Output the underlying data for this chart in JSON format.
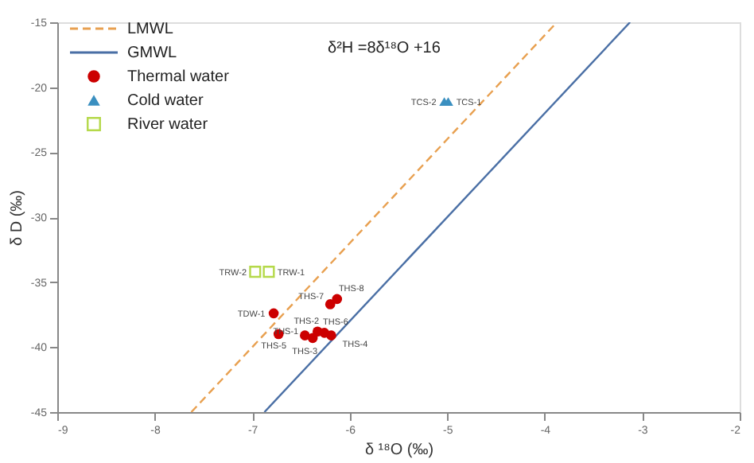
{
  "chart_data": {
    "type": "scatter",
    "xlabel": "δ ¹⁸O (‰)",
    "ylabel": "δ D (‰)",
    "xlim": [
      -9,
      -2
    ],
    "ylim": [
      -45,
      -15
    ],
    "xticks": [
      -9,
      -8,
      -7,
      -6,
      -5,
      -4,
      -3,
      -2
    ],
    "yticks": [
      -45,
      -40,
      -35,
      -30,
      -25,
      -20,
      -15
    ],
    "grid": false,
    "legend": "top left",
    "series": [
      {
        "name": "LMWL",
        "type": "line",
        "color": "#e8a050",
        "line_style": "dashed",
        "marker": "none",
        "x": [
          -7.625,
          -3.875
        ],
        "values": [
          -45,
          -15
        ]
      },
      {
        "name": "GMWL",
        "type": "line",
        "color": "#4a6fa5",
        "line_style": "solid",
        "marker": "none",
        "x": [
          -6.875,
          -3.125
        ],
        "values": [
          -45,
          -15
        ]
      },
      {
        "name": "Thermal water",
        "color": "#cc0000",
        "marker": "circle",
        "x": [
          -6.78,
          -6.73,
          -6.46,
          -6.38,
          -6.33,
          -6.26,
          -6.19,
          -6.2,
          -6.13
        ],
        "values": [
          -37.4,
          -39.0,
          -39.1,
          -39.3,
          -38.8,
          -38.9,
          -39.1,
          -36.7,
          -36.3
        ],
        "value_labels": [
          "TDW-1",
          "THS-5",
          "THS-1",
          "THS-3",
          "THS-2",
          "THS-6",
          "THS-4",
          "THS-7",
          "THS-8"
        ]
      },
      {
        "name": "Cold water",
        "color": "#3a8fc0",
        "marker": "triangle",
        "x": [
          -5.03,
          -4.99
        ],
        "values": [
          -21.1,
          -21.1
        ],
        "value_labels": [
          "TCS-2",
          "TCS-1"
        ]
      },
      {
        "name": "River water",
        "color": "#b5d94a",
        "marker": "square",
        "x": [
          -6.97,
          -6.83
        ],
        "values": [
          -34.2,
          -34.2
        ],
        "value_labels": [
          "TRW-2",
          "TRW-1"
        ]
      }
    ],
    "annotations": [
      "δ²H =8δ¹⁸O +16"
    ]
  }
}
